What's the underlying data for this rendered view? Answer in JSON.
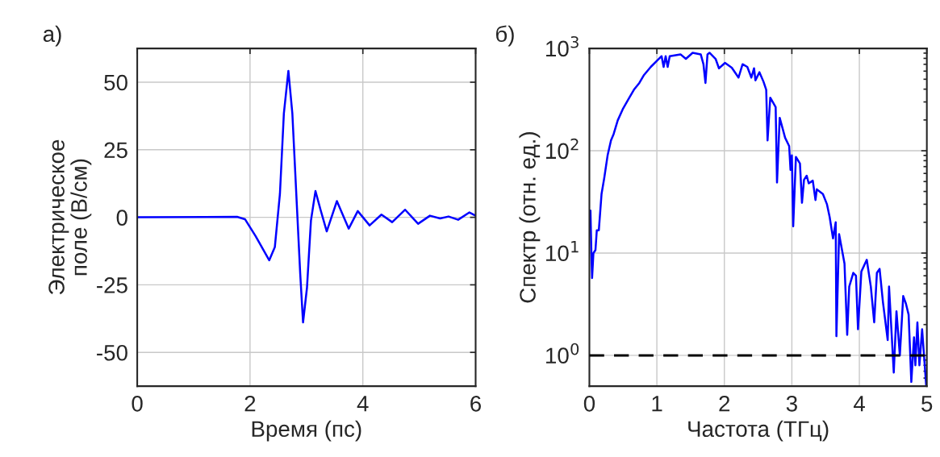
{
  "chart_data": [
    {
      "type": "line",
      "title": "а)",
      "xlabel": "Время (пс)",
      "ylabel": "Электрическое\nполе (В/см)",
      "xlim": [
        0,
        6
      ],
      "xticks": [
        0,
        2,
        4,
        6
      ],
      "ylim": [
        -62.5,
        62.5
      ],
      "yticks": [
        -50,
        -25,
        0,
        25,
        50
      ],
      "grid": true,
      "legend": false,
      "series": [
        {
          "color": "#0000ff",
          "x": [
            0,
            1.77,
            1.91,
            2.1,
            2.34,
            2.44,
            2.53,
            2.6,
            2.68,
            2.75,
            2.82,
            2.89,
            2.94,
            3.01,
            3.08,
            3.16,
            3.25,
            3.36,
            3.54,
            3.75,
            3.91,
            4.12,
            4.33,
            4.52,
            4.75,
            4.98,
            5.19,
            5.37,
            5.52,
            5.69,
            5.89,
            6.0
          ],
          "values": [
            0,
            0.2,
            -0.7,
            -7,
            -15.9,
            -11,
            8.7,
            38.5,
            54.2,
            38.5,
            8.7,
            -21,
            -38.9,
            -26,
            -1.2,
            9.7,
            2.8,
            -5.2,
            6,
            -4.2,
            2.3,
            -3,
            1,
            -1.8,
            2.8,
            -2.4,
            0.6,
            -0.4,
            0.3,
            -0.9,
            1.8,
            0.6
          ]
        }
      ]
    },
    {
      "type": "line",
      "title": "б)",
      "xlabel": "Частота (ТГц)",
      "ylabel": "Спектр (отн. ед.)",
      "log": "y",
      "xlim": [
        0,
        5
      ],
      "xticks": [
        0,
        1,
        2,
        3,
        4,
        5
      ],
      "ylim": [
        0.5,
        1000
      ],
      "yticks": [
        {
          "value": 1,
          "label": "10$^{0}$"
        },
        {
          "value": 10,
          "label": "10$^{1}$"
        },
        {
          "value": 100,
          "label": "10$^{2}$"
        },
        {
          "value": 1000,
          "label": "10$^{3}$"
        }
      ],
      "grid": true,
      "legend": false,
      "ref_lines": [
        {
          "axis": "y",
          "value": 1,
          "color": "#000000",
          "line_style": "dashed"
        }
      ],
      "series": [
        {
          "color": "#0000ff",
          "x": [
            0.016,
            0.03,
            0.04,
            0.06,
            0.09,
            0.11,
            0.14,
            0.18,
            0.22,
            0.27,
            0.32,
            0.36,
            0.42,
            0.5,
            0.58,
            0.66,
            0.74,
            0.81,
            0.91,
            1.01,
            1.07,
            1.1,
            1.13,
            1.16,
            1.19,
            1.35,
            1.43,
            1.53,
            1.65,
            1.69,
            1.72,
            1.75,
            1.78,
            1.87,
            1.92,
            2.01,
            2.11,
            2.21,
            2.27,
            2.34,
            2.4,
            2.44,
            2.46,
            2.52,
            2.58,
            2.62,
            2.64,
            2.68,
            2.76,
            2.78,
            2.82,
            2.9,
            2.96,
            2.98,
            3.0,
            3.02,
            3.06,
            3.12,
            3.15,
            3.18,
            3.22,
            3.25,
            3.31,
            3.35,
            3.37,
            3.46,
            3.52,
            3.56,
            3.61,
            3.65,
            3.66,
            3.7,
            3.78,
            3.82,
            3.85,
            3.91,
            3.95,
            3.98,
            4.03,
            4.11,
            4.17,
            4.22,
            4.26,
            4.3,
            4.35,
            4.42,
            4.44,
            4.51,
            4.55,
            4.6,
            4.65,
            4.69,
            4.73,
            4.77,
            4.81,
            4.83,
            4.86,
            4.89,
            4.93,
            4.99
          ],
          "values": [
            26,
            10,
            5.7,
            10,
            10.7,
            16.7,
            16.7,
            37.7,
            54,
            90,
            126,
            146,
            198,
            259,
            320,
            395,
            460,
            551,
            660,
            767,
            840,
            660,
            840,
            660,
            840,
            876,
            791,
            907,
            876,
            701,
            460,
            876,
            907,
            791,
            640,
            722,
            649,
            519,
            701,
            660,
            519,
            640,
            488,
            585,
            473,
            395,
            126,
            330,
            267,
            49,
            210,
            134,
            111,
            65,
            90,
            18.3,
            87,
            75,
            31,
            52,
            57,
            48,
            51,
            33,
            42,
            37.7,
            30,
            22.5,
            13.9,
            20,
            1.54,
            15.3,
            7.9,
            1.59,
            4.7,
            6.4,
            6.0,
            1.8,
            6.6,
            8.6,
            4.7,
            2.1,
            6.4,
            7.0,
            3.3,
            1.41,
            4.7,
            0.68,
            2.7,
            1.0,
            3.8,
            3.2,
            2.5,
            0.55,
            1.5,
            0.8,
            2.1,
            0.8,
            1.8,
            0.51
          ]
        }
      ]
    }
  ]
}
